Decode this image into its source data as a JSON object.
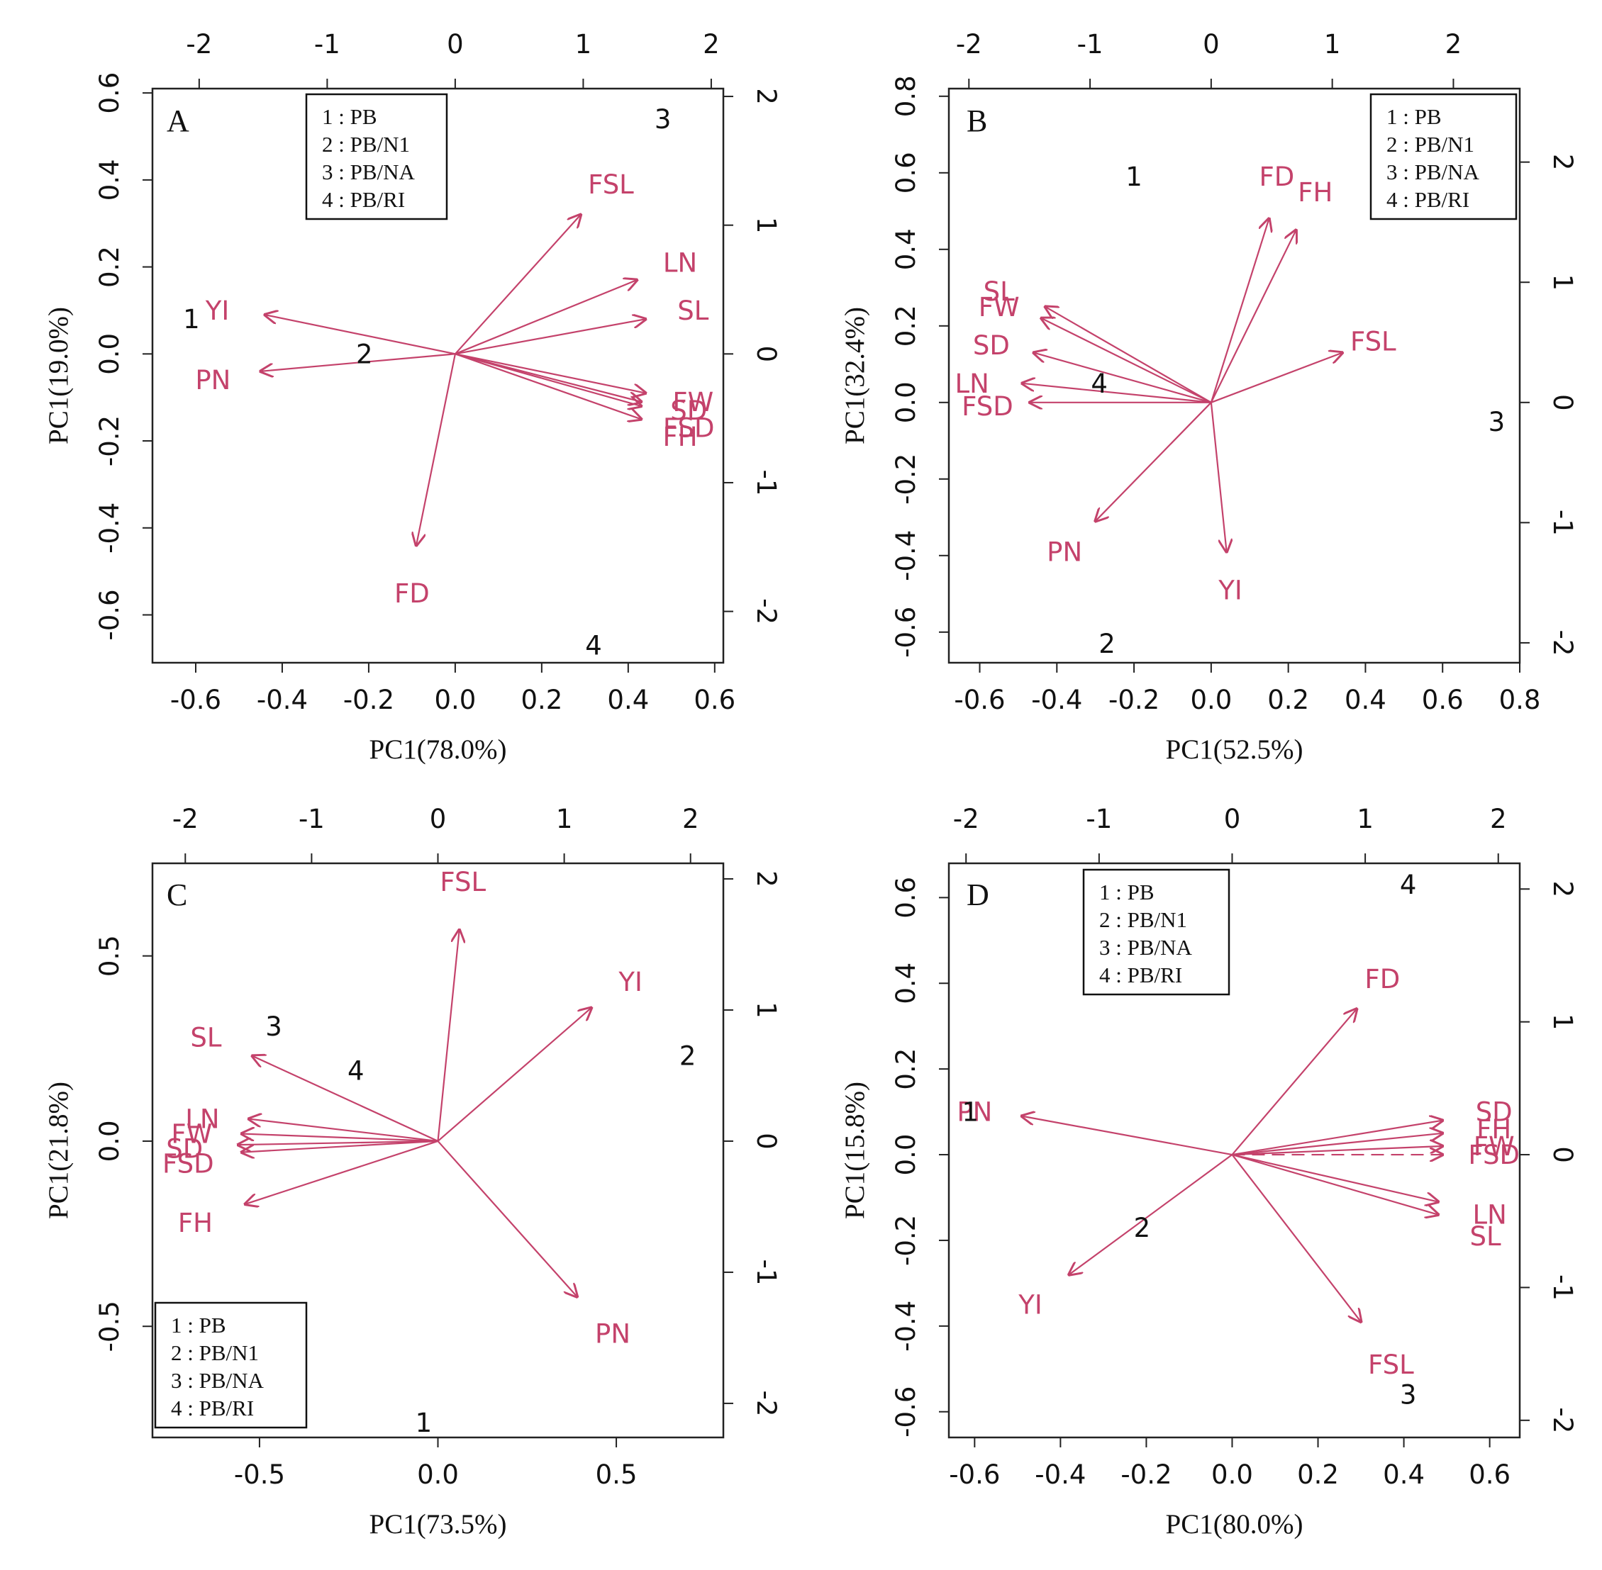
{
  "colors": {
    "variable": "#c4426b",
    "observation": "#111111",
    "axis": "#222222"
  },
  "chart_data": [
    {
      "type": "scatter",
      "panel": "A",
      "title": "",
      "xlabel": "PC1(78.0%)",
      "ylabel": "PC1(19.0%)",
      "xlim": [
        -0.7,
        0.62
      ],
      "ylim": [
        -0.71,
        0.61
      ],
      "xticks": [
        -0.6,
        -0.4,
        -0.2,
        0.0,
        0.2,
        0.4,
        0.6
      ],
      "xtick_labels": [
        "-0.6",
        "-0.4",
        "-0.2",
        "0.0",
        "0.2",
        "0.4",
        "0.6"
      ],
      "yticks": [
        -0.6,
        -0.4,
        -0.2,
        0.0,
        0.2,
        0.4,
        0.6
      ],
      "ytick_labels": [
        "-0.6",
        "-0.4",
        "-0.2",
        "0.0",
        "0.2",
        "0.4",
        "0.6"
      ],
      "top_ticks": [
        -2,
        -1,
        0,
        1,
        2
      ],
      "top_tick_labels": [
        "-2",
        "-1",
        "0",
        "1",
        "2"
      ],
      "right_ticks": [
        2,
        1,
        0,
        -1,
        -2
      ],
      "right_tick_labels": [
        "2",
        "1",
        "0",
        "-1",
        "-2"
      ],
      "sec_scale": 0.296,
      "legend_position": "top-left",
      "legend": [
        "1 : PB",
        "2 : PB/N1",
        "3 : PB/NA",
        "4 : PB/RI"
      ],
      "variables": [
        {
          "name": "FSL",
          "x": 0.29,
          "y": 0.32,
          "lx": 0.36,
          "ly": 0.39
        },
        {
          "name": "LN",
          "x": 0.42,
          "y": 0.17,
          "lx": 0.52,
          "ly": 0.21
        },
        {
          "name": "SL",
          "x": 0.44,
          "y": 0.08,
          "lx": 0.55,
          "ly": 0.1
        },
        {
          "name": "FW",
          "x": 0.44,
          "y": -0.09,
          "lx": 0.55,
          "ly": -0.11
        },
        {
          "name": "SD",
          "x": 0.43,
          "y": -0.11,
          "lx": 0.54,
          "ly": -0.13
        },
        {
          "name": "FSD",
          "x": 0.43,
          "y": -0.12,
          "lx": 0.54,
          "ly": -0.17
        },
        {
          "name": "FH",
          "x": 0.43,
          "y": -0.15,
          "lx": 0.52,
          "ly": -0.19
        },
        {
          "name": "YI",
          "x": -0.44,
          "y": 0.09,
          "lx": -0.55,
          "ly": 0.1
        },
        {
          "name": "PN",
          "x": -0.45,
          "y": -0.04,
          "lx": -0.56,
          "ly": -0.06
        },
        {
          "name": "FD",
          "x": -0.09,
          "y": -0.44,
          "lx": -0.1,
          "ly": -0.55
        }
      ],
      "observations": [
        {
          "label": "1",
          "x": -0.61,
          "y": 0.08
        },
        {
          "label": "2",
          "x": -0.21,
          "y": 0.0
        },
        {
          "label": "3",
          "x": 0.48,
          "y": 0.54
        },
        {
          "label": "4",
          "x": 0.32,
          "y": -0.67
        }
      ]
    },
    {
      "type": "scatter",
      "panel": "B",
      "title": "",
      "xlabel": "PC1(52.5%)",
      "ylabel": "PC1(32.4%)",
      "xlim": [
        -0.68,
        0.8
      ],
      "ylim": [
        -0.68,
        0.82
      ],
      "xticks": [
        -0.6,
        -0.4,
        -0.2,
        0.0,
        0.2,
        0.4,
        0.6,
        0.8
      ],
      "xtick_labels": [
        "-0.6",
        "-0.4",
        "-0.2",
        "0.0",
        "0.2",
        "0.4",
        "0.6",
        "0.8"
      ],
      "yticks": [
        -0.6,
        -0.4,
        -0.2,
        0.0,
        0.2,
        0.4,
        0.6,
        0.8
      ],
      "ytick_labels": [
        "-0.6",
        "-0.4",
        "-0.2",
        "0.0",
        "0.2",
        "0.4",
        "0.6",
        "0.8"
      ],
      "top_ticks": [
        -2,
        -1,
        0,
        1,
        2
      ],
      "top_tick_labels": [
        "-2",
        "-1",
        "0",
        "1",
        "2"
      ],
      "right_ticks": [
        2,
        1,
        0,
        -1,
        -2
      ],
      "right_tick_labels": [
        "2",
        "1",
        "0",
        "-1",
        "-2"
      ],
      "sec_scale": 0.314,
      "legend_position": "top-right",
      "legend": [
        "1 : PB",
        "2 : PB/N1",
        "3 : PB/NA",
        "4 : PB/RI"
      ],
      "variables": [
        {
          "name": "FD",
          "x": 0.15,
          "y": 0.48,
          "lx": 0.17,
          "ly": 0.59
        },
        {
          "name": "FH",
          "x": 0.22,
          "y": 0.45,
          "lx": 0.27,
          "ly": 0.55
        },
        {
          "name": "FSL",
          "x": 0.34,
          "y": 0.13,
          "lx": 0.42,
          "ly": 0.16
        },
        {
          "name": "SL",
          "x": -0.43,
          "y": 0.25,
          "lx": -0.55,
          "ly": 0.29
        },
        {
          "name": "FW",
          "x": -0.44,
          "y": 0.22,
          "lx": -0.55,
          "ly": 0.25
        },
        {
          "name": "SD",
          "x": -0.46,
          "y": 0.13,
          "lx": -0.57,
          "ly": 0.15
        },
        {
          "name": "LN",
          "x": -0.49,
          "y": 0.05,
          "lx": -0.62,
          "ly": 0.05
        },
        {
          "name": "FSD",
          "x": -0.47,
          "y": 0.0,
          "lx": -0.58,
          "ly": -0.01
        },
        {
          "name": "PN",
          "x": -0.3,
          "y": -0.31,
          "lx": -0.38,
          "ly": -0.39
        },
        {
          "name": "YI",
          "x": 0.04,
          "y": -0.39,
          "lx": 0.05,
          "ly": -0.49
        }
      ],
      "observations": [
        {
          "label": "1",
          "x": -0.2,
          "y": 0.59
        },
        {
          "label": "2",
          "x": -0.27,
          "y": -0.63
        },
        {
          "label": "3",
          "x": 0.74,
          "y": -0.05
        },
        {
          "label": "4",
          "x": -0.29,
          "y": 0.05
        }
      ]
    },
    {
      "type": "scatter",
      "panel": "C",
      "title": "",
      "xlabel": "PC1(73.5%)",
      "ylabel": "PC1(21.8%)",
      "xlim": [
        -0.8,
        0.8
      ],
      "ylim": [
        -0.8,
        0.75
      ],
      "xticks": [
        -0.5,
        0.0,
        0.5
      ],
      "xtick_labels": [
        "-0.5",
        "0.0",
        "0.5"
      ],
      "yticks": [
        -0.5,
        0.0,
        0.5
      ],
      "ytick_labels": [
        "-0.5",
        "0.0",
        "0.5"
      ],
      "top_ticks": [
        -2,
        -1,
        0,
        1,
        2
      ],
      "top_tick_labels": [
        "-2",
        "-1",
        "0",
        "1",
        "2"
      ],
      "right_ticks": [
        2,
        1,
        0,
        -1,
        -2
      ],
      "right_tick_labels": [
        "2",
        "1",
        "0",
        "-1",
        "-2"
      ],
      "sec_scale": 0.354,
      "legend_position": "bottom-left",
      "legend": [
        "1 : PB",
        "2 : PB/N1",
        "3 : PB/NA",
        "4 : PB/RI"
      ],
      "variables": [
        {
          "name": "FSL",
          "x": 0.06,
          "y": 0.57,
          "lx": 0.07,
          "ly": 0.7
        },
        {
          "name": "YI",
          "x": 0.43,
          "y": 0.36,
          "lx": 0.54,
          "ly": 0.43
        },
        {
          "name": "PN",
          "x": 0.39,
          "y": -0.42,
          "lx": 0.49,
          "ly": -0.52
        },
        {
          "name": "SL",
          "x": -0.52,
          "y": 0.23,
          "lx": -0.65,
          "ly": 0.28
        },
        {
          "name": "LN",
          "x": -0.53,
          "y": 0.06,
          "lx": -0.66,
          "ly": 0.06
        },
        {
          "name": "FW",
          "x": -0.55,
          "y": 0.02,
          "lx": -0.69,
          "ly": 0.02
        },
        {
          "name": "SD",
          "x": -0.56,
          "y": -0.01,
          "lx": -0.71,
          "ly": -0.02
        },
        {
          "name": "FSD",
          "x": -0.55,
          "y": -0.03,
          "lx": -0.7,
          "ly": -0.06
        },
        {
          "name": "FH",
          "x": -0.54,
          "y": -0.17,
          "lx": -0.68,
          "ly": -0.22
        }
      ],
      "observations": [
        {
          "label": "1",
          "x": -0.04,
          "y": -0.76
        },
        {
          "label": "2",
          "x": 0.7,
          "y": 0.23
        },
        {
          "label": "3",
          "x": -0.46,
          "y": 0.31
        },
        {
          "label": "4",
          "x": -0.23,
          "y": 0.19
        }
      ]
    },
    {
      "type": "scatter",
      "panel": "D",
      "title": "",
      "xlabel": "PC1(80.0%)",
      "ylabel": "PC1(15.8%)",
      "xlim": [
        -0.66,
        0.67
      ],
      "ylim": [
        -0.66,
        0.68
      ],
      "xticks": [
        -0.6,
        -0.4,
        -0.2,
        0.0,
        0.2,
        0.4,
        0.6
      ],
      "xtick_labels": [
        "-0.6",
        "-0.4",
        "-0.2",
        "0.0",
        "0.2",
        "0.4",
        "0.6"
      ],
      "yticks": [
        -0.6,
        -0.4,
        -0.2,
        0.0,
        0.2,
        0.4,
        0.6
      ],
      "ytick_labels": [
        "-0.6",
        "-0.4",
        "-0.2",
        "0.0",
        "0.2",
        "0.4",
        "0.6"
      ],
      "top_ticks": [
        -2,
        -1,
        0,
        1,
        2
      ],
      "top_tick_labels": [
        "-2",
        "-1",
        "0",
        "1",
        "2"
      ],
      "right_ticks": [
        2,
        1,
        0,
        -1,
        -2
      ],
      "right_tick_labels": [
        "2",
        "1",
        "0",
        "-1",
        "-2"
      ],
      "sec_scale": 0.31,
      "legend_position": "top-left",
      "legend": [
        "1 : PB",
        "2 : PB/N1",
        "3 : PB/NA",
        "4 : PB/RI"
      ],
      "variables": [
        {
          "name": "FD",
          "x": 0.29,
          "y": 0.34,
          "lx": 0.35,
          "ly": 0.41
        },
        {
          "name": "FSL",
          "x": 0.3,
          "y": -0.39,
          "lx": 0.37,
          "ly": -0.49
        },
        {
          "name": "YI",
          "x": -0.38,
          "y": -0.28,
          "lx": -0.47,
          "ly": -0.35
        },
        {
          "name": "PN",
          "x": -0.49,
          "y": 0.09,
          "lx": -0.6,
          "ly": 0.1
        },
        {
          "name": "SD",
          "x": 0.49,
          "y": 0.08,
          "lx": 0.61,
          "ly": 0.1
        },
        {
          "name": "FH",
          "x": 0.49,
          "y": 0.05,
          "lx": 0.61,
          "ly": 0.06
        },
        {
          "name": "FW",
          "x": 0.49,
          "y": 0.02,
          "lx": 0.61,
          "ly": 0.02
        },
        {
          "name": "FSD",
          "x": 0.49,
          "y": 0.0,
          "lx": 0.61,
          "ly": 0.0
        },
        {
          "name": "LN",
          "x": 0.48,
          "y": -0.11,
          "lx": 0.6,
          "ly": -0.14
        },
        {
          "name": "SL",
          "x": 0.48,
          "y": -0.14,
          "lx": 0.59,
          "ly": -0.19
        }
      ],
      "observations": [
        {
          "label": "1",
          "x": -0.61,
          "y": 0.1
        },
        {
          "label": "2",
          "x": -0.21,
          "y": -0.17
        },
        {
          "label": "3",
          "x": 0.41,
          "y": -0.56
        },
        {
          "label": "4",
          "x": 0.41,
          "y": 0.63
        }
      ]
    }
  ]
}
